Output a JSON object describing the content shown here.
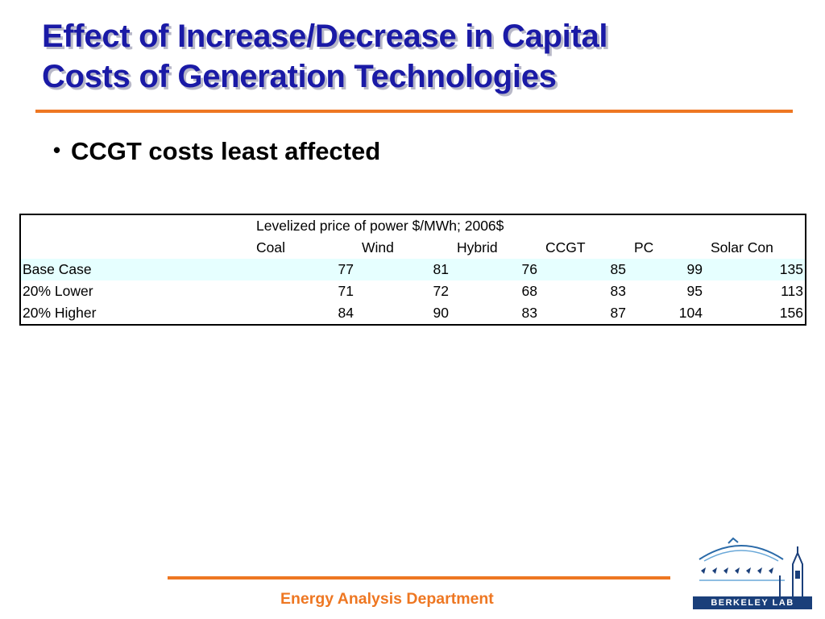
{
  "title": {
    "line1": "Effect of Increase/Decrease in Capital",
    "line2": "Costs of Generation Technologies"
  },
  "bullets": [
    "CCGT costs least affected"
  ],
  "table": {
    "caption": "Levelized price of power $/MWh; 2006$",
    "columns": [
      "Coal",
      "Wind",
      "Hybrid",
      "CCGT",
      "PC",
      "Solar Con"
    ],
    "rows": [
      {
        "label": "Base Case",
        "values": [
          "77",
          "81",
          "76",
          "85",
          "99",
          "135"
        ]
      },
      {
        "label": "20% Lower",
        "values": [
          "71",
          "72",
          "68",
          "83",
          "95",
          "113"
        ]
      },
      {
        "label": "20% Higher",
        "values": [
          "84",
          "90",
          "83",
          "87",
          "104",
          "156"
        ]
      }
    ]
  },
  "footer": {
    "department": "Energy Analysis Department",
    "logo_text": "BERKELEY LAB"
  },
  "colors": {
    "title": "#1a1aa6",
    "accent": "#ee7722",
    "row_highlight": "#e6ffff"
  }
}
